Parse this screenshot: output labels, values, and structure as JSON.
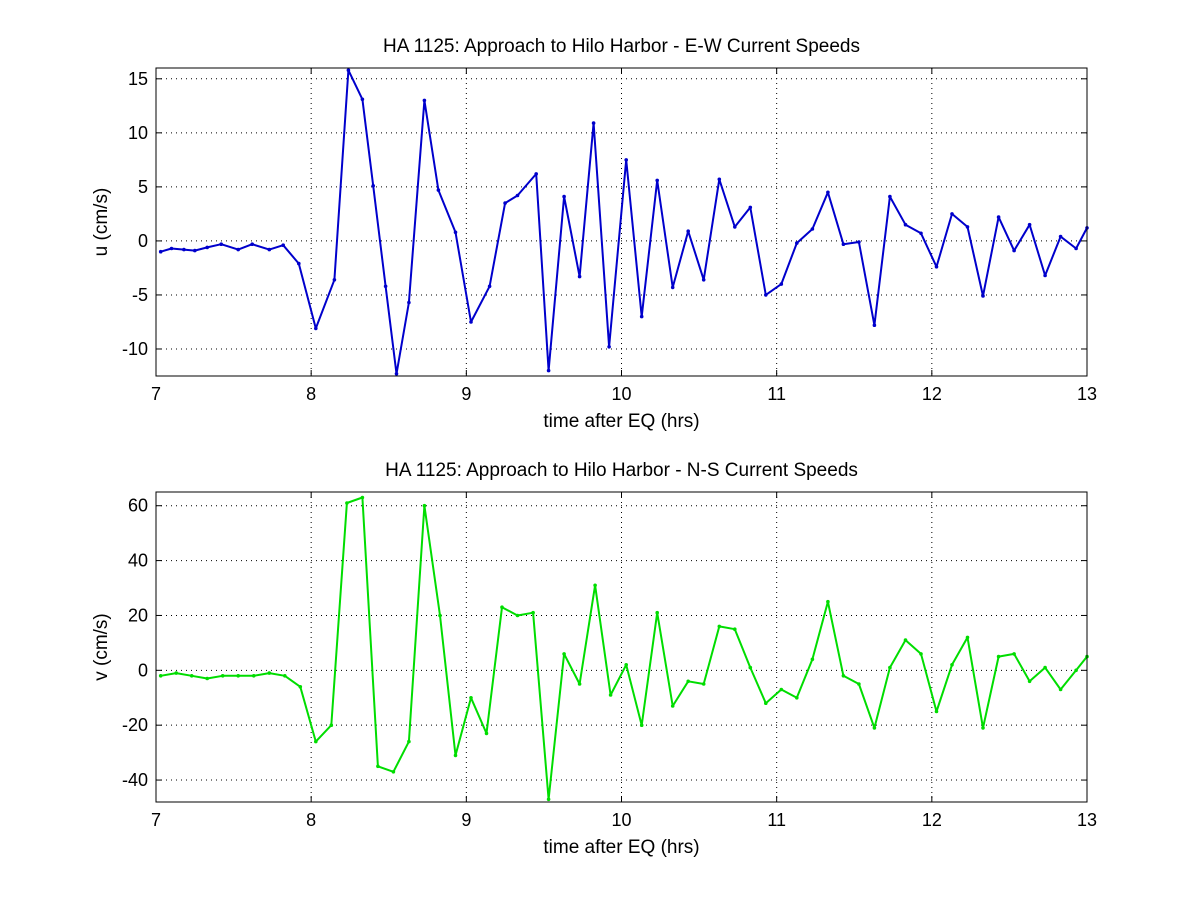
{
  "chart_data": [
    {
      "type": "line",
      "title": "HA 1125: Approach to Hilo Harbor - E-W Current Speeds",
      "xlabel": "time after EQ (hrs)",
      "ylabel": "u (cm/s)",
      "xlim": [
        7,
        13
      ],
      "ylim": [
        -12.5,
        16
      ],
      "xticks": [
        7,
        8,
        9,
        10,
        11,
        12,
        13
      ],
      "yticks": [
        -10,
        -5,
        0,
        5,
        10,
        15
      ],
      "grid": true,
      "series": [
        {
          "color": "#0000cc",
          "marker": "dot",
          "x": [
            7.03,
            7.1,
            7.18,
            7.25,
            7.33,
            7.42,
            7.53,
            7.62,
            7.73,
            7.82,
            7.92,
            8.03,
            8.15,
            8.24,
            8.33,
            8.4,
            8.48,
            8.55,
            8.63,
            8.73,
            8.82,
            8.93,
            9.03,
            9.15,
            9.25,
            9.33,
            9.45,
            9.53,
            9.63,
            9.73,
            9.82,
            9.92,
            10.03,
            10.13,
            10.23,
            10.33,
            10.43,
            10.53,
            10.63,
            10.73,
            10.83,
            10.93,
            11.03,
            11.13,
            11.23,
            11.33,
            11.43,
            11.53,
            11.63,
            11.73,
            11.83,
            11.93,
            12.03,
            12.13,
            12.23,
            12.33,
            12.43,
            12.53,
            12.63,
            12.73,
            12.83,
            12.93,
            13.0
          ],
          "y": [
            -1.0,
            -0.7,
            -0.8,
            -0.9,
            -0.6,
            -0.3,
            -0.8,
            -0.3,
            -0.8,
            -0.4,
            -2.1,
            -8.1,
            -3.6,
            15.8,
            13.1,
            5.1,
            -4.2,
            -12.3,
            -5.7,
            13.0,
            4.7,
            0.8,
            -7.5,
            -4.2,
            3.5,
            4.2,
            6.2,
            -12.0,
            4.1,
            -3.3,
            10.9,
            -9.8,
            7.5,
            -7.0,
            5.6,
            -4.3,
            0.9,
            -3.6,
            5.7,
            1.3,
            3.1,
            -5.0,
            -4.0,
            -0.2,
            1.1,
            4.5,
            -0.3,
            -0.1,
            -7.8,
            4.1,
            1.5,
            0.7,
            -2.4,
            2.5,
            1.3,
            -5.1,
            2.2,
            -0.9,
            1.5,
            -3.2,
            0.4,
            -0.7,
            1.2
          ]
        }
      ]
    },
    {
      "type": "line",
      "title": "HA 1125: Approach to Hilo Harbor - N-S Current Speeds",
      "xlabel": "time after EQ (hrs)",
      "ylabel": "v (cm/s)",
      "xlim": [
        7,
        13
      ],
      "ylim": [
        -48,
        65
      ],
      "xticks": [
        7,
        8,
        9,
        10,
        11,
        12,
        13
      ],
      "yticks": [
        -40,
        -20,
        0,
        20,
        40,
        60
      ],
      "grid": true,
      "series": [
        {
          "color": "#00dd00",
          "marker": "dot",
          "x": [
            7.03,
            7.13,
            7.23,
            7.33,
            7.43,
            7.53,
            7.63,
            7.73,
            7.83,
            7.93,
            8.03,
            8.13,
            8.23,
            8.33,
            8.43,
            8.53,
            8.63,
            8.73,
            8.83,
            8.93,
            9.03,
            9.13,
            9.23,
            9.33,
            9.43,
            9.53,
            9.63,
            9.73,
            9.83,
            9.93,
            10.03,
            10.13,
            10.23,
            10.33,
            10.43,
            10.53,
            10.63,
            10.73,
            10.83,
            10.93,
            11.03,
            11.13,
            11.23,
            11.33,
            11.43,
            11.53,
            11.63,
            11.73,
            11.83,
            11.93,
            12.03,
            12.13,
            12.23,
            12.33,
            12.43,
            12.53,
            12.63,
            12.73,
            12.83,
            12.93,
            13.0
          ],
          "y": [
            -2,
            -1,
            -2,
            -3,
            -2,
            -2,
            -2,
            -1,
            -2,
            -6,
            -26,
            -20,
            61,
            63,
            -35,
            -37,
            -26,
            60,
            20,
            -31,
            -10,
            -23,
            23,
            20,
            21,
            -47,
            6,
            -5,
            31,
            -9,
            2,
            -20,
            21,
            -13,
            -4,
            -5,
            16,
            15,
            1,
            -12,
            -7,
            -10,
            4,
            25,
            -2,
            -5,
            -21,
            1,
            11,
            6,
            -15,
            2,
            12,
            -21,
            5,
            6,
            -4,
            1,
            -7,
            0,
            5
          ]
        }
      ]
    }
  ]
}
